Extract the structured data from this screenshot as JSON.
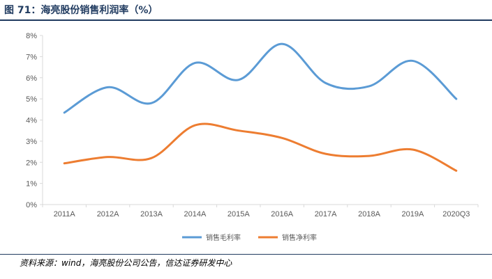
{
  "figure": {
    "title": "图 71：海亮股份销售利润率（%）",
    "source": "资料来源：wind，海亮股份公司公告，信达证券研发中心"
  },
  "chart_data": {
    "type": "line",
    "categories": [
      "2011A",
      "2012A",
      "2013A",
      "2014A",
      "2015A",
      "2016A",
      "2017A",
      "2018A",
      "2019A",
      "2020Q3"
    ],
    "series": [
      {
        "name": "销售毛利率",
        "color": "#5B9BD5",
        "values": [
          4.35,
          5.55,
          4.8,
          6.7,
          5.9,
          7.6,
          5.75,
          5.6,
          6.8,
          5.0
        ]
      },
      {
        "name": "销售净利率",
        "color": "#ED7D31",
        "values": [
          1.95,
          2.25,
          2.2,
          3.75,
          3.5,
          3.15,
          2.4,
          2.3,
          2.6,
          1.6
        ]
      }
    ],
    "yticks": [
      "0%",
      "1%",
      "2%",
      "3%",
      "4%",
      "5%",
      "6%",
      "7%",
      "8%"
    ],
    "ylim": [
      0,
      8
    ],
    "grid": false,
    "legend": "bottom"
  }
}
